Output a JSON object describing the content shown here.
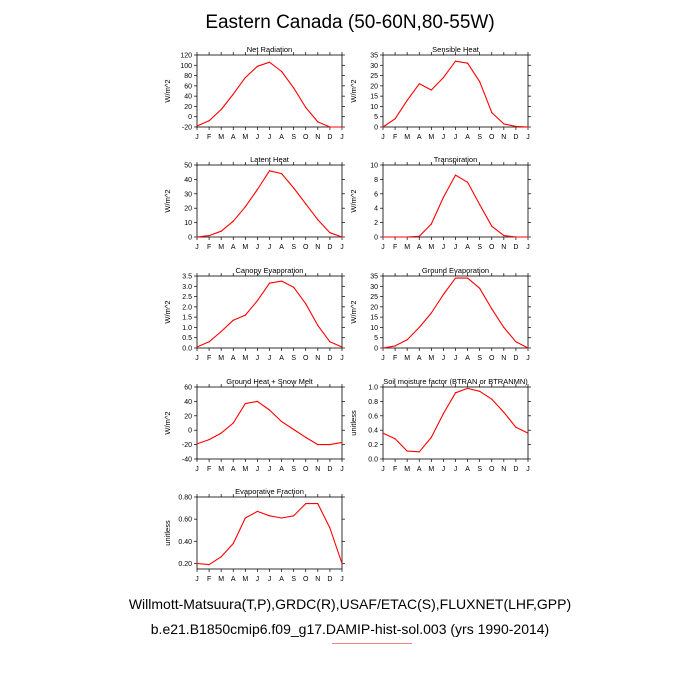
{
  "title": "Eastern Canada (50-60N,80-55W)",
  "footer": {
    "line1": "Willmott-Matsuura(T,P),GRDC(R),USAF/ETAC(S),FLUXNET(LHF,GPP)",
    "line2": "b.e21.B1850cmip6.f09_g17.DAMIP-hist-sol.003 (yrs 1990-2014)"
  },
  "colors": {
    "line": "#ff0000",
    "axis": "#000000"
  },
  "chart_data": [
    {
      "type": "line",
      "title": "Net Radiation",
      "ylabel": "W/m^2",
      "categories": [
        "J",
        "F",
        "M",
        "A",
        "M",
        "J",
        "J",
        "A",
        "S",
        "O",
        "N",
        "D",
        "J"
      ],
      "ylim": [
        -20,
        120
      ],
      "yticks": [
        -20,
        0,
        20,
        40,
        60,
        80,
        100,
        120
      ],
      "values": [
        -18,
        -8,
        14,
        44,
        76,
        98,
        106,
        88,
        56,
        18,
        -10,
        -20,
        -20
      ]
    },
    {
      "type": "line",
      "title": "Sensible Heat",
      "ylabel": "W/m^2",
      "categories": [
        "J",
        "F",
        "M",
        "A",
        "M",
        "J",
        "J",
        "A",
        "S",
        "O",
        "N",
        "D",
        "J"
      ],
      "ylim": [
        0,
        35
      ],
      "yticks": [
        0,
        5,
        10,
        15,
        20,
        25,
        30,
        35
      ],
      "values": [
        0,
        4,
        13,
        21,
        18,
        24,
        32,
        31,
        22,
        7,
        1.5,
        0.3,
        0
      ]
    },
    {
      "type": "line",
      "title": "Latent Heat",
      "ylabel": "W/m^2",
      "categories": [
        "J",
        "F",
        "M",
        "A",
        "M",
        "J",
        "J",
        "A",
        "S",
        "O",
        "N",
        "D",
        "J"
      ],
      "ylim": [
        0,
        50
      ],
      "yticks": [
        0,
        10,
        20,
        30,
        40,
        50
      ],
      "values": [
        0,
        1,
        4,
        11,
        21,
        33,
        46,
        44,
        34,
        23,
        12,
        3,
        0
      ]
    },
    {
      "type": "line",
      "title": "Transpiration",
      "ylabel": "W/m^2",
      "categories": [
        "J",
        "F",
        "M",
        "A",
        "M",
        "J",
        "J",
        "A",
        "S",
        "O",
        "N",
        "D",
        "J"
      ],
      "ylim": [
        0,
        10
      ],
      "yticks": [
        0,
        2,
        4,
        6,
        8,
        10
      ],
      "values": [
        0,
        0,
        0,
        0.1,
        1.8,
        5.5,
        8.6,
        7.6,
        4.5,
        1.5,
        0.2,
        0,
        0
      ]
    },
    {
      "type": "line",
      "title": "Canopy Evaporation",
      "ylabel": "W/m^2",
      "categories": [
        "J",
        "F",
        "M",
        "A",
        "M",
        "J",
        "J",
        "A",
        "S",
        "O",
        "N",
        "D",
        "J"
      ],
      "ylim": [
        0,
        3.5
      ],
      "yticks": [
        0.0,
        0.5,
        1.0,
        1.5,
        2.0,
        2.5,
        3.0,
        3.5
      ],
      "tickDecimals": 1,
      "values": [
        0.05,
        0.3,
        0.8,
        1.35,
        1.6,
        2.3,
        3.15,
        3.25,
        2.95,
        2.15,
        1.1,
        0.3,
        0.05
      ]
    },
    {
      "type": "line",
      "title": "Ground Evaporation",
      "ylabel": "W/m^2",
      "categories": [
        "J",
        "F",
        "M",
        "A",
        "M",
        "J",
        "J",
        "A",
        "S",
        "O",
        "N",
        "D",
        "J"
      ],
      "ylim": [
        0,
        35
      ],
      "yticks": [
        0,
        5,
        10,
        15,
        20,
        25,
        30,
        35
      ],
      "values": [
        0,
        1,
        4,
        10,
        17,
        26,
        34,
        34,
        29,
        19,
        10,
        3,
        0
      ]
    },
    {
      "type": "line",
      "title": "Ground Heat + Snow Melt",
      "ylabel": "W/m^2",
      "categories": [
        "J",
        "F",
        "M",
        "A",
        "M",
        "J",
        "J",
        "A",
        "S",
        "O",
        "N",
        "D",
        "J"
      ],
      "ylim": [
        -40,
        60
      ],
      "yticks": [
        -40,
        -20,
        0,
        20,
        40,
        60
      ],
      "values": [
        -19,
        -13,
        -4,
        10,
        37,
        40,
        28,
        12,
        1,
        -10,
        -20,
        -20,
        -17
      ]
    },
    {
      "type": "line",
      "title": "Soil moisture factor (BTRAN or BTRANMN)",
      "ylabel": "unitless",
      "categories": [
        "J",
        "F",
        "M",
        "A",
        "M",
        "J",
        "J",
        "A",
        "S",
        "O",
        "N",
        "D",
        "J"
      ],
      "ylim": [
        0,
        1.0
      ],
      "yticks": [
        0.0,
        0.2,
        0.4,
        0.6,
        0.8,
        1.0
      ],
      "tickDecimals": 1,
      "values": [
        0.36,
        0.28,
        0.11,
        0.1,
        0.3,
        0.63,
        0.92,
        0.98,
        0.94,
        0.83,
        0.65,
        0.44,
        0.36
      ]
    },
    {
      "type": "line",
      "title": "Evaporative Fraction",
      "ylabel": "unitless",
      "categories": [
        "J",
        "F",
        "M",
        "A",
        "M",
        "J",
        "J",
        "A",
        "S",
        "O",
        "N",
        "D",
        "J"
      ],
      "ylim": [
        0.15,
        0.8
      ],
      "yticks": [
        0.2,
        0.4,
        0.6,
        0.8
      ],
      "tickDecimals": 2,
      "values": [
        0.2,
        0.19,
        0.26,
        0.38,
        0.61,
        0.67,
        0.63,
        0.61,
        0.63,
        0.74,
        0.74,
        0.52,
        0.2
      ]
    }
  ]
}
